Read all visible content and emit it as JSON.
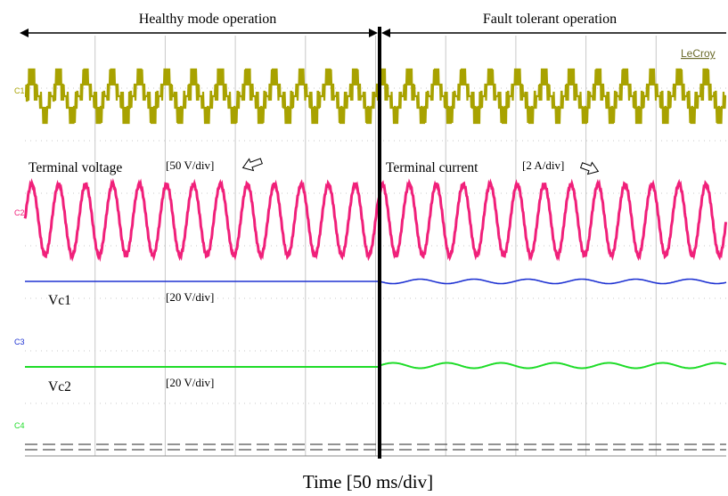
{
  "chart_data": {
    "type": "line",
    "title": "",
    "xlabel": "Time [50 ms/div]",
    "instrument": "LeCroy",
    "grid": true,
    "x_divisions": 10,
    "y_divisions": 8,
    "regions": [
      {
        "label": "Healthy mode operation",
        "span_divisions": [
          0,
          5
        ]
      },
      {
        "label": "Fault tolerant operation",
        "span_divisions": [
          5,
          10
        ]
      }
    ],
    "annotations": [
      {
        "text": "Terminal voltage",
        "scale": "[50 V/div]"
      },
      {
        "text": "Terminal current",
        "scale": "[2 A/div]"
      },
      {
        "text": "Vc1",
        "scale": "[20 V/div]"
      },
      {
        "text": "Vc2",
        "scale": "[20 V/div]"
      }
    ],
    "series": [
      {
        "name": "C1",
        "color": "#a8a200",
        "waveform": "multilevel-stepped",
        "cycles_per_div": 2.6
      },
      {
        "name": "C2",
        "color": "#f0207a",
        "waveform": "sinusoidal",
        "cycles_per_div": 2.6
      },
      {
        "name": "C3",
        "color": "#1e32d2",
        "waveform": "dc",
        "ripple_after_fault": true
      },
      {
        "name": "C4",
        "color": "#1edc28",
        "waveform": "dc",
        "ripple_after_fault": true
      }
    ],
    "colors": {
      "divider": "#000000",
      "grid": "#c8c8c8",
      "c4_trace": "#505050"
    }
  }
}
